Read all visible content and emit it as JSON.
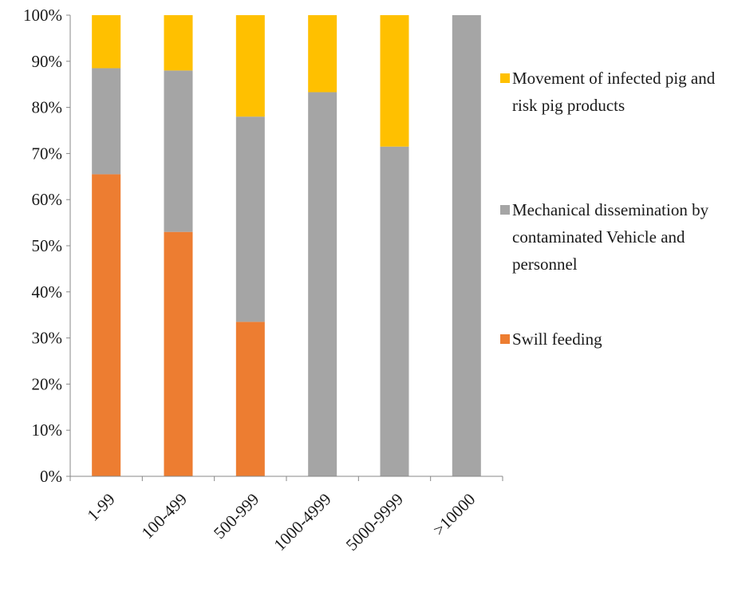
{
  "chart_data": {
    "type": "bar",
    "stacked": true,
    "normalized": true,
    "categories": [
      "1-99",
      "100-499",
      "500-999",
      "1000-4999",
      "5000-9999",
      ">10000"
    ],
    "series": [
      {
        "name": "Swill feeding",
        "color": "#ED7D31",
        "values": [
          65.5,
          53,
          33.5,
          0,
          0,
          0
        ]
      },
      {
        "name": "Mechanical dissemination by contaminated Vehicle and personnel",
        "legend_lines": [
          "Mechanical dissemination by",
          "contaminated Vehicle and",
          "personnel"
        ],
        "color": "#A5A5A5",
        "values": [
          23,
          35,
          44.5,
          83.3,
          71.5,
          100
        ]
      },
      {
        "name": "Movement of infected  pig and risk pig products",
        "legend_lines": [
          "Movement of infected  pig and",
          "risk pig products"
        ],
        "color": "#FFC000",
        "values": [
          11.5,
          12,
          22,
          16.7,
          28.5,
          0
        ]
      }
    ],
    "y_ticks": [
      "0%",
      "10%",
      "20%",
      "30%",
      "40%",
      "50%",
      "60%",
      "70%",
      "80%",
      "90%",
      "100%"
    ],
    "ylim": [
      0,
      100
    ],
    "grid": false,
    "legend_position": "right",
    "legend_order": [
      2,
      1,
      0
    ],
    "title": "",
    "xlabel": "",
    "ylabel": ""
  }
}
